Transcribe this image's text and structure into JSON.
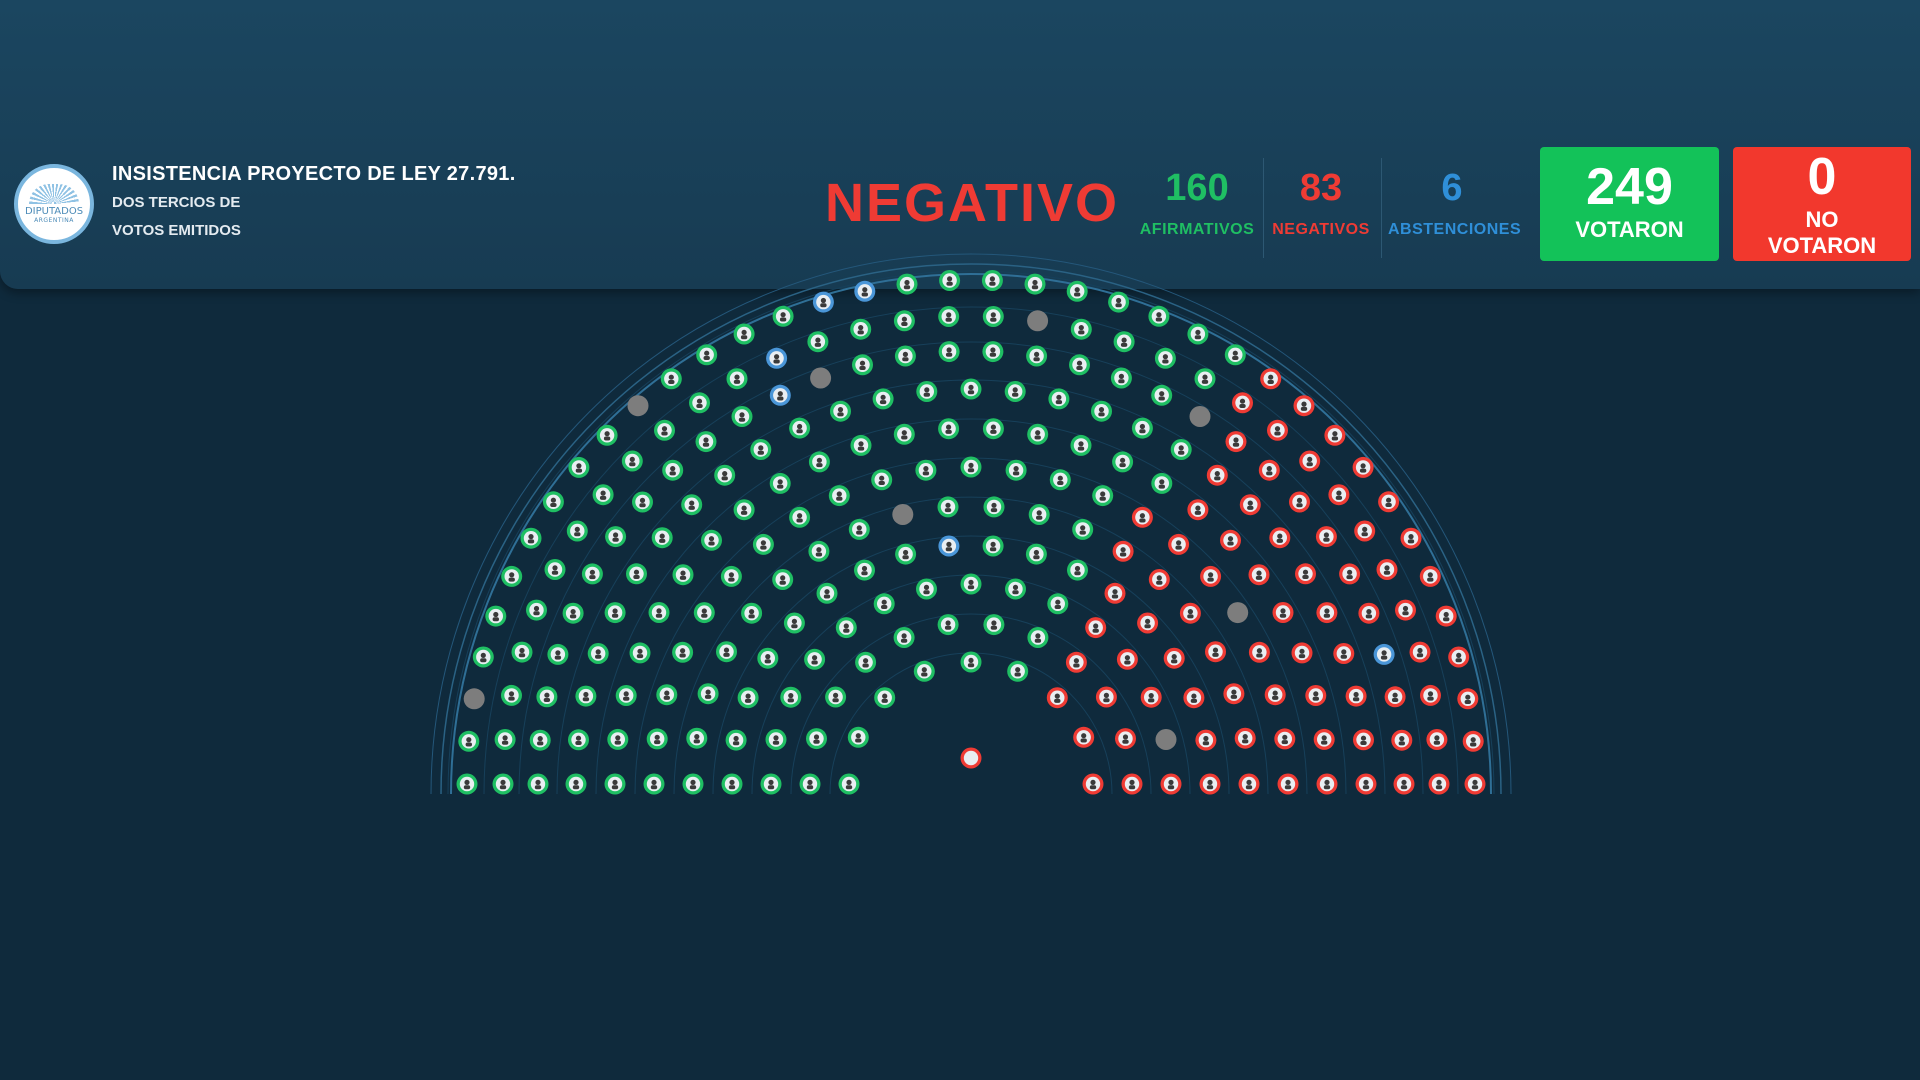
{
  "header": {
    "logo_text_line1": "DIPUTADOS",
    "logo_text_line2": "ARGENTINA",
    "title": "INSISTENCIA PROYECTO DE LEY 27.791.",
    "subtitle_line1": "DOS TERCIOS DE",
    "subtitle_line2": "VOTOS EMITIDOS",
    "result": "NEGATIVO"
  },
  "stats": {
    "afirmativos": {
      "value": "160",
      "label": "AFIRMATIVOS",
      "color": "#1fbf63"
    },
    "negativos": {
      "value": "83",
      "label": "NEGATIVOS",
      "color": "#ef3b34"
    },
    "abstenciones": {
      "value": "6",
      "label": "ABSTENCIONES",
      "color": "#2f8fd8"
    },
    "votaron": {
      "value": "249",
      "label": "VOTARON",
      "bg": "#13c259"
    },
    "no_votaron": {
      "value": "0",
      "label_line1": "NO",
      "label_line2": "VOTARON",
      "bg": "#f2382d"
    }
  },
  "colors": {
    "result": "#ef3b34",
    "afirmativo": "#1fbf63",
    "negativo": "#ef3b34",
    "abstencion": "#4a96d8",
    "ausente": "#7d7d7d",
    "background": "#0f2a3c"
  },
  "chamber": {
    "total_seats": 257,
    "afirmativos": 160,
    "negativos": 83,
    "abstenciones": 6,
    "sin_voto": 8,
    "icon": "deputy-avatar-icon"
  }
}
